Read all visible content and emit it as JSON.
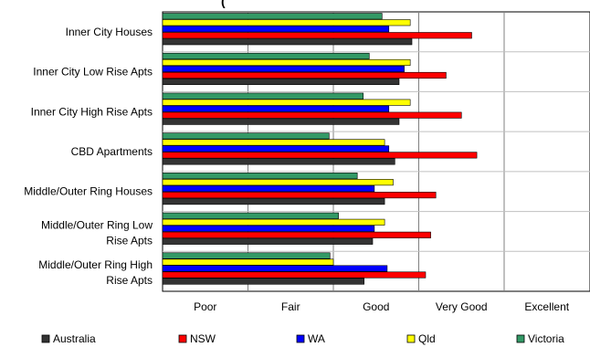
{
  "chart_data": {
    "type": "bar",
    "orientation": "horizontal",
    "title_partial": "(",
    "categories": [
      [
        "Inner City Houses"
      ],
      [
        "Inner City Low Rise Apts"
      ],
      [
        "Inner City High Rise Apts"
      ],
      [
        "CBD Apartments"
      ],
      [
        "Middle/Outer Ring Houses"
      ],
      [
        "Middle/Outer Ring Low",
        "Rise Apts"
      ],
      [
        "Middle/Outer Ring High",
        "Rise Apts"
      ]
    ],
    "x_ticks": [
      "Poor",
      "Fair",
      "Good",
      "Very Good",
      "Excellent"
    ],
    "xlim": [
      0,
      4
    ],
    "grid": "vertical",
    "legend_position": "bottom",
    "series": [
      {
        "name": "Victoria",
        "color": "#339966",
        "values": [
          2.57,
          2.42,
          2.35,
          1.95,
          2.28,
          2.06,
          1.96
        ]
      },
      {
        "name": "Qld",
        "color": "#ffff00",
        "values": [
          2.9,
          2.9,
          2.9,
          2.6,
          2.7,
          2.6,
          2.0
        ]
      },
      {
        "name": "WA",
        "color": "#0000ff",
        "values": [
          2.65,
          2.83,
          2.65,
          2.65,
          2.48,
          2.48,
          2.63
        ]
      },
      {
        "name": "NSW",
        "color": "#ff0000",
        "values": [
          3.62,
          3.32,
          3.5,
          3.68,
          3.2,
          3.14,
          3.08
        ]
      },
      {
        "name": "Australia",
        "color": "#333333",
        "values": [
          2.92,
          2.77,
          2.77,
          2.72,
          2.6,
          2.46,
          2.36
        ]
      }
    ],
    "legend_order": [
      "Australia",
      "NSW",
      "WA",
      "Qld",
      "Victoria"
    ]
  }
}
